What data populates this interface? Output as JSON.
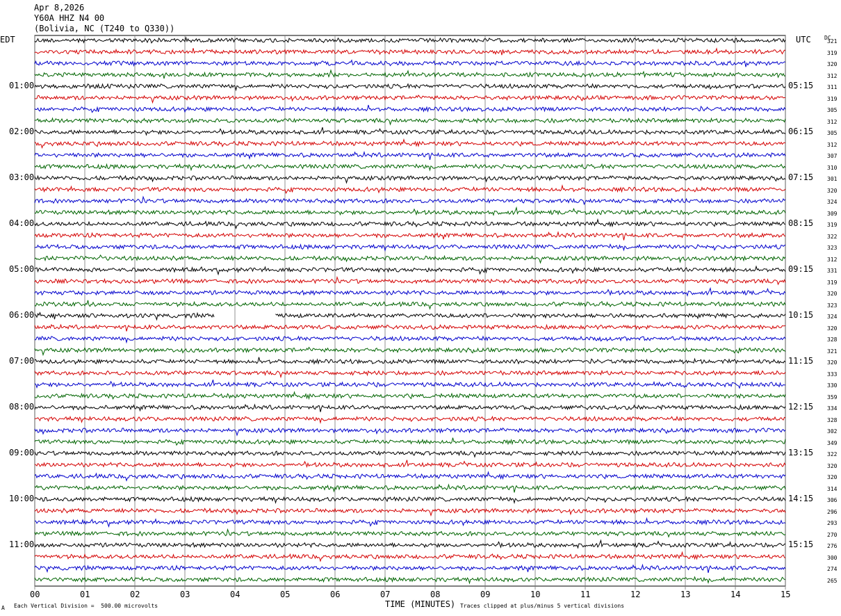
{
  "header": {
    "date": "Apr 8,2026",
    "station": "Y60A HHZ N4 00",
    "location": "(Bolivia, NC (T240 to Q330))"
  },
  "left_tz": "EDT",
  "right_tz": "UTC",
  "dc_label": "DC",
  "footer": {
    "left": "Each Vertical Division =  500.00 microvolts",
    "center": "TIME (MINUTES)",
    "right": "Traces clipped at plus/minus 5 vertical divisions",
    "mark": "A"
  },
  "colors": {
    "trace_cycle": [
      "#000000",
      "#d40000",
      "#0000cc",
      "#006400"
    ],
    "grid": "#000000"
  },
  "chart_data": {
    "type": "line",
    "title": "Apr 8,2026 Y60A HHZ N4 00 (Bolivia, NC (T240 to Q330))",
    "xlabel": "TIME (MINUTES)",
    "xlim": [
      0,
      15
    ],
    "x_ticks": [
      "00",
      "01",
      "02",
      "03",
      "04",
      "05",
      "06",
      "07",
      "08",
      "09",
      "10",
      "11",
      "12",
      "13",
      "14",
      "15"
    ],
    "left_hour_labels": [
      "01:00",
      "02:00",
      "03:00",
      "04:00",
      "05:00",
      "06:00",
      "07:00",
      "08:00",
      "09:00",
      "10:00",
      "11:00"
    ],
    "right_hour_labels": [
      "05:15",
      "06:15",
      "07:15",
      "08:15",
      "09:15",
      "10:15",
      "11:15",
      "12:15",
      "13:15",
      "14:15",
      "15:15"
    ],
    "dc_offsets": [
      321,
      319,
      320,
      312,
      311,
      319,
      305,
      312,
      305,
      312,
      307,
      310,
      301,
      320,
      324,
      309,
      319,
      322,
      323,
      312,
      331,
      319,
      320,
      323,
      324,
      320,
      328,
      321,
      320,
      333,
      330,
      359,
      334,
      328,
      302,
      349,
      322,
      320,
      320,
      314,
      306,
      296,
      293,
      270,
      276,
      300,
      274,
      265
    ],
    "trace_count": 48,
    "vertical_division_microvolts": 500.0,
    "data_gaps": [
      {
        "trace_index": 24,
        "start_min": 3.6,
        "end_min": 4.8
      }
    ]
  }
}
